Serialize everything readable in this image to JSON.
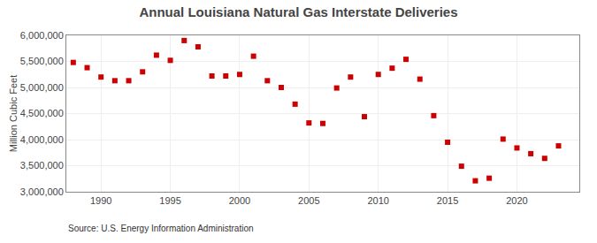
{
  "chart_data": {
    "type": "scatter",
    "title": "Annual Louisiana Natural Gas Interstate Deliveries",
    "ylabel": "Million Cubic Feet",
    "annotations": [
      "Source: U.S. Energy Information Administration"
    ],
    "x": [
      1988,
      1989,
      1990,
      1991,
      1992,
      1993,
      1994,
      1995,
      1996,
      1997,
      1998,
      1999,
      2000,
      2001,
      2002,
      2003,
      2004,
      2005,
      2006,
      2007,
      2008,
      2009,
      2010,
      2011,
      2012,
      2013,
      2014,
      2015,
      2016,
      2017,
      2018,
      2019,
      2020,
      2021,
      2022,
      2023
    ],
    "values": [
      5480000,
      5380000,
      5200000,
      5130000,
      5130000,
      5300000,
      5620000,
      5520000,
      5900000,
      5780000,
      5220000,
      5220000,
      5250000,
      5600000,
      5130000,
      5000000,
      4680000,
      4320000,
      4310000,
      4990000,
      5200000,
      4440000,
      5250000,
      5370000,
      5540000,
      5160000,
      4460000,
      3950000,
      3490000,
      3210000,
      3260000,
      4010000,
      3840000,
      3730000,
      3640000,
      3880000
    ],
    "color": "#cc0000",
    "marker": "square",
    "xlim": [
      1987.5,
      2024.5
    ],
    "xticks": [
      1990,
      1995,
      2000,
      2005,
      2010,
      2015,
      2020
    ],
    "ylim": [
      3000000,
      6000000
    ],
    "yticks": [
      {
        "value": 3000000,
        "label": "3,000,000"
      },
      {
        "value": 3500000,
        "label": "3,500,000"
      },
      {
        "value": 4000000,
        "label": "4,000,000"
      },
      {
        "value": 4500000,
        "label": "4,500,000"
      },
      {
        "value": 5000000,
        "label": "5,000,000"
      },
      {
        "value": 5500000,
        "label": "5,500,000"
      },
      {
        "value": 6000000,
        "label": "6,000,000"
      }
    ],
    "grid": true
  }
}
